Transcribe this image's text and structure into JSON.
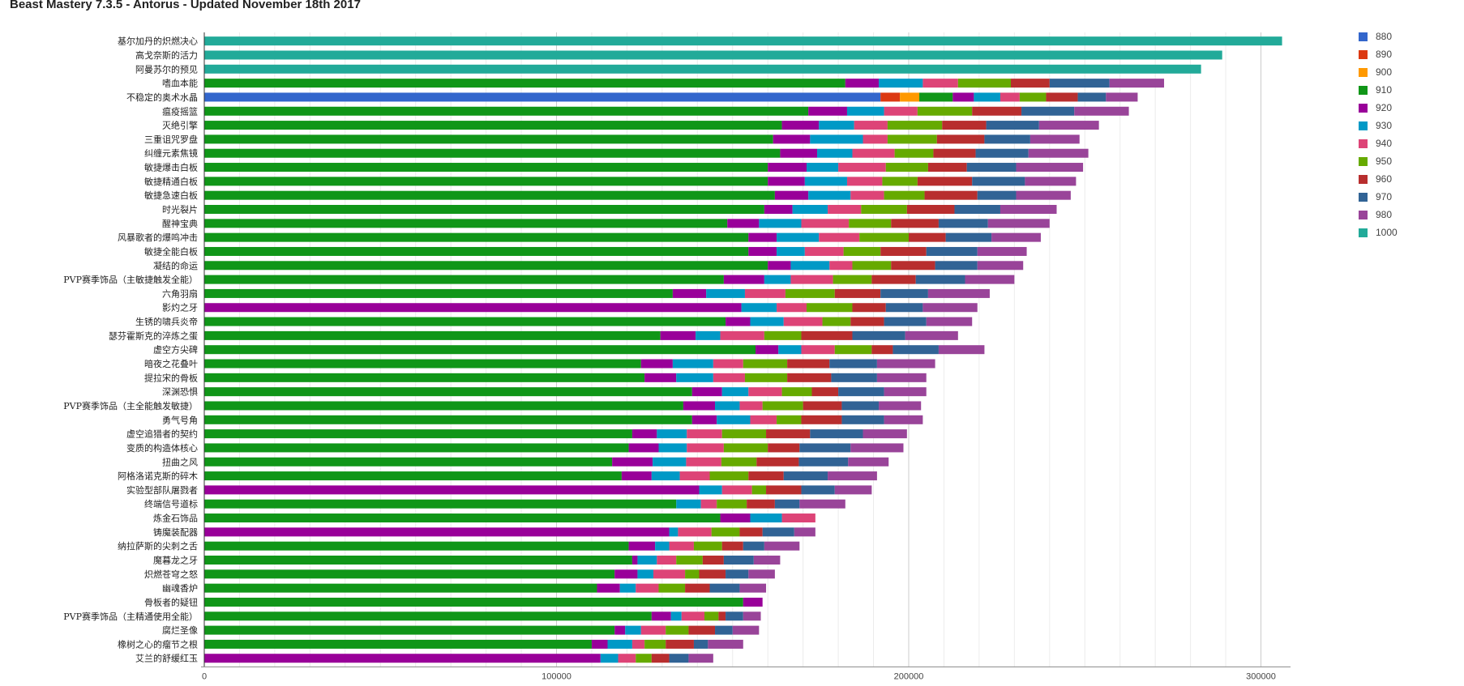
{
  "chart_data": {
    "type": "bar",
    "orientation": "horizontal",
    "stacked": true,
    "title": "Beast Mastery 7.3.5 - Antorus - Updated November 18th 2017",
    "xlabel": "",
    "ylabel": "",
    "xlim": [
      0,
      310000
    ],
    "x_ticks": [
      0,
      100000,
      200000,
      300000
    ],
    "grid": true,
    "legend_position": "top-right",
    "categories": [
      "基尔加丹的炽燃决心",
      "高戈奈斯的活力",
      "阿曼苏尔的预见",
      "嗜血本能",
      "不稳定的奥术水晶",
      "瘟疫摇篮",
      "灭绝引擎",
      "三重诅咒罗盘",
      "纠缠元素焦镜",
      "敏捷爆击白板",
      "敏捷精通白板",
      "敏捷急速白板",
      "时光裂片",
      "醒神宝典",
      "风暴歌者的爆鸣冲击",
      "敏捷全能白板",
      "凝结的命运",
      "PVP赛季饰品（主敏捷触发全能）",
      "六角羽扇",
      "影灼之牙",
      "生锈的啸兵炎帝",
      "瑟芬霍斯克的淬炼之蛋",
      "虚空方尖碑",
      "暗夜之花叠叶",
      "提拉宋的骨板",
      "深渊恐惧",
      "PVP赛季饰品（主全能触发敏捷）",
      "勇气号角",
      "虚空追猎者的契约",
      "变质的构造体核心",
      "扭曲之风",
      "阿格洛诺克斯的碎木",
      "实验型部队屠戮者",
      "终端信号道标",
      "炼金石饰品",
      "铸魔装配器",
      "纳拉萨斯的尖刺之舌",
      "魔暮龙之牙",
      "炽燃苍穹之怒",
      "幽魂香炉",
      "骨板者的疑钮",
      "PVP赛季饰品（主精通使用全能）",
      "腐烂圣像",
      "橡树之心的瘤节之根",
      "艾兰的舒缓红玉"
    ],
    "series": [
      {
        "name": "880",
        "color": "#3366cc",
        "values": [
          0,
          0,
          0,
          0,
          192000,
          0,
          0,
          0,
          0,
          0,
          0,
          0,
          0,
          0,
          0,
          0,
          0,
          0,
          0,
          0,
          0,
          0,
          0,
          0,
          0,
          0,
          0,
          0,
          0,
          0,
          0,
          0,
          0,
          0,
          0,
          0,
          0,
          0,
          0,
          0,
          0,
          0,
          0,
          0,
          0
        ]
      },
      {
        "name": "890",
        "color": "#dc3912",
        "values": [
          0,
          0,
          0,
          0,
          5500,
          0,
          0,
          0,
          0,
          0,
          0,
          0,
          0,
          0,
          0,
          0,
          0,
          0,
          0,
          0,
          0,
          0,
          0,
          0,
          0,
          0,
          0,
          0,
          0,
          0,
          0,
          0,
          0,
          0,
          0,
          0,
          0,
          0,
          0,
          0,
          0,
          0,
          0,
          0,
          0
        ]
      },
      {
        "name": "900",
        "color": "#ff9900",
        "values": [
          0,
          0,
          0,
          0,
          5500,
          0,
          0,
          0,
          0,
          0,
          0,
          0,
          0,
          0,
          0,
          0,
          0,
          0,
          0,
          0,
          0,
          0,
          0,
          0,
          0,
          0,
          0,
          0,
          0,
          0,
          0,
          0,
          0,
          0,
          0,
          0,
          0,
          0,
          0,
          0,
          0,
          0,
          0,
          0,
          0
        ]
      },
      {
        "name": "910",
        "color": "#109618",
        "values": [
          0,
          0,
          0,
          182000,
          9500,
          171500,
          164000,
          161500,
          163500,
          160000,
          160000,
          162000,
          159000,
          148500,
          154500,
          154500,
          160000,
          147500,
          133000,
          0,
          148000,
          129500,
          156500,
          124000,
          125000,
          138500,
          136000,
          138500,
          121500,
          120500,
          115800,
          118500,
          0,
          134000,
          146500,
          0,
          120500,
          121500,
          116500,
          111500,
          153000,
          127000,
          116500,
          110000,
          0
        ]
      },
      {
        "name": "920",
        "color": "#990099",
        "values": [
          0,
          0,
          0,
          9500,
          6000,
          11000,
          10500,
          10500,
          10500,
          11000,
          10500,
          9500,
          8000,
          9000,
          8000,
          8000,
          6500,
          11500,
          9500,
          152500,
          7000,
          10000,
          6500,
          9000,
          9000,
          8500,
          9000,
          7000,
          7000,
          8500,
          11500,
          8500,
          140500,
          0,
          8500,
          132000,
          7500,
          1500,
          6500,
          6500,
          5500,
          5500,
          3000,
          4500,
          112500
        ]
      },
      {
        "name": "930",
        "color": "#0099c6",
        "values": [
          0,
          0,
          0,
          12500,
          7500,
          10500,
          10000,
          15000,
          10000,
          9000,
          12000,
          12000,
          10000,
          12000,
          12000,
          8000,
          11000,
          7500,
          11000,
          10000,
          9500,
          7000,
          6500,
          11500,
          10500,
          7500,
          7000,
          9500,
          8500,
          8000,
          9500,
          8000,
          6500,
          7000,
          9000,
          2500,
          4000,
          5500,
          4500,
          4500,
          0,
          3000,
          4500,
          7000,
          5000
        ]
      },
      {
        "name": "940",
        "color": "#dd4477",
        "values": [
          0,
          0,
          0,
          10000,
          5500,
          9500,
          9500,
          7000,
          12000,
          13500,
          10000,
          9500,
          9500,
          13500,
          11500,
          11000,
          6500,
          12000,
          11500,
          8500,
          11000,
          12500,
          9500,
          8500,
          9000,
          9500,
          6500,
          7500,
          10000,
          10500,
          10000,
          8500,
          8500,
          4500,
          9500,
          9500,
          7000,
          5500,
          9000,
          6500,
          0,
          6500,
          7000,
          3500,
          5000
        ]
      },
      {
        "name": "950",
        "color": "#66aa00",
        "values": [
          0,
          0,
          0,
          15000,
          7500,
          15500,
          15500,
          14000,
          11000,
          12000,
          10000,
          11500,
          13000,
          12000,
          14000,
          10500,
          11000,
          11000,
          14000,
          13000,
          8000,
          10500,
          10500,
          12500,
          12000,
          8500,
          11500,
          7000,
          12500,
          12500,
          10000,
          11000,
          4000,
          8500,
          0,
          8000,
          8000,
          7500,
          4000,
          7500,
          0,
          4000,
          6500,
          6000,
          4500
        ]
      },
      {
        "name": "960",
        "color": "#b82e2e",
        "values": [
          0,
          0,
          0,
          11000,
          9000,
          14000,
          12500,
          13500,
          12000,
          11000,
          15500,
          15000,
          13500,
          13500,
          10500,
          13000,
          12500,
          12500,
          13000,
          9500,
          9500,
          14500,
          6000,
          12000,
          12500,
          7500,
          11000,
          11500,
          12500,
          9000,
          12000,
          10000,
          10000,
          8000,
          0,
          6500,
          6000,
          6000,
          7500,
          7000,
          0,
          2000,
          7500,
          8000,
          5000
        ]
      },
      {
        "name": "970",
        "color": "#316395",
        "values": [
          0,
          0,
          0,
          17000,
          8000,
          15000,
          15000,
          13000,
          15000,
          14000,
          15000,
          11000,
          13000,
          14000,
          13000,
          14500,
          12000,
          14000,
          13500,
          10500,
          12000,
          15000,
          13000,
          13500,
          13000,
          13000,
          10500,
          12000,
          15000,
          14500,
          14000,
          12500,
          9500,
          7000,
          0,
          9000,
          6000,
          8500,
          6500,
          8500,
          0,
          5000,
          5000,
          4000,
          5500
        ]
      },
      {
        "name": "980",
        "color": "#994499",
        "values": [
          0,
          0,
          0,
          15500,
          9000,
          15500,
          17000,
          14000,
          17000,
          19000,
          14500,
          15500,
          16000,
          17500,
          14000,
          14000,
          13000,
          14000,
          17500,
          15500,
          13000,
          15000,
          13000,
          16500,
          14000,
          12000,
          12000,
          11000,
          12500,
          15000,
          11500,
          14000,
          10500,
          13000,
          0,
          6000,
          10000,
          7500,
          7500,
          7500,
          0,
          5000,
          7500,
          10000,
          7000
        ]
      },
      {
        "name": "1000",
        "color": "#22aa99",
        "values": [
          306000,
          289000,
          283000,
          0,
          0,
          0,
          0,
          0,
          0,
          0,
          0,
          0,
          0,
          0,
          0,
          0,
          0,
          0,
          0,
          0,
          0,
          0,
          0,
          0,
          0,
          0,
          0,
          0,
          0,
          0,
          0,
          0,
          0,
          0,
          0,
          0,
          0,
          0,
          0,
          0,
          0,
          0,
          0,
          0,
          0
        ]
      }
    ]
  }
}
